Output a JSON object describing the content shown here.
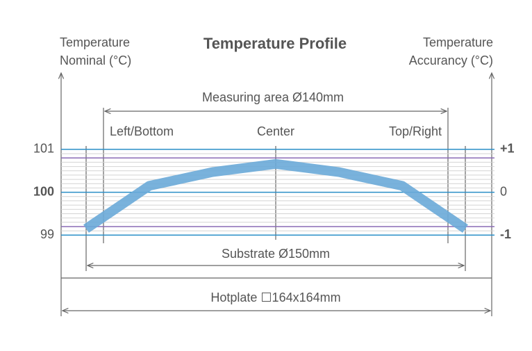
{
  "chart_data": {
    "type": "line",
    "title": "Temperature Profile",
    "y_label": [
      "Temperature",
      "Nominal (°C)"
    ],
    "y2_label": [
      "Temperature",
      "Accurancy (°C)"
    ],
    "annotations": {
      "measuring": "Measuring area Ø140mm",
      "left": "Left/Bottom",
      "center": "Center",
      "right": "Top/Right",
      "substrate": "Substrate Ø150mm",
      "hotplate": "Hotplate ☐164x164mm"
    },
    "x": [
      -75,
      -60,
      -50,
      -25,
      0,
      25,
      50,
      60,
      75
    ],
    "xlim": [
      -75,
      75
    ],
    "series": [
      {
        "name": "Temperature",
        "color": "#6aaad8",
        "values": [
          99.15,
          99.75,
          100.15,
          100.47,
          100.66,
          100.47,
          100.15,
          99.75,
          99.15
        ]
      }
    ],
    "ylim": [
      98,
      102.7
    ],
    "yticks": [
      99,
      100,
      101
    ],
    "y2lim": [
      -2,
      2.7
    ],
    "y2ticks": [
      -1,
      0,
      {
        "value": 1,
        "label": "+1"
      }
    ],
    "limit_lines": [
      99.2,
      100.8
    ],
    "limit_color": "#8a6bb5",
    "grid_color": "#2a8fc8",
    "minor_grid": true
  }
}
